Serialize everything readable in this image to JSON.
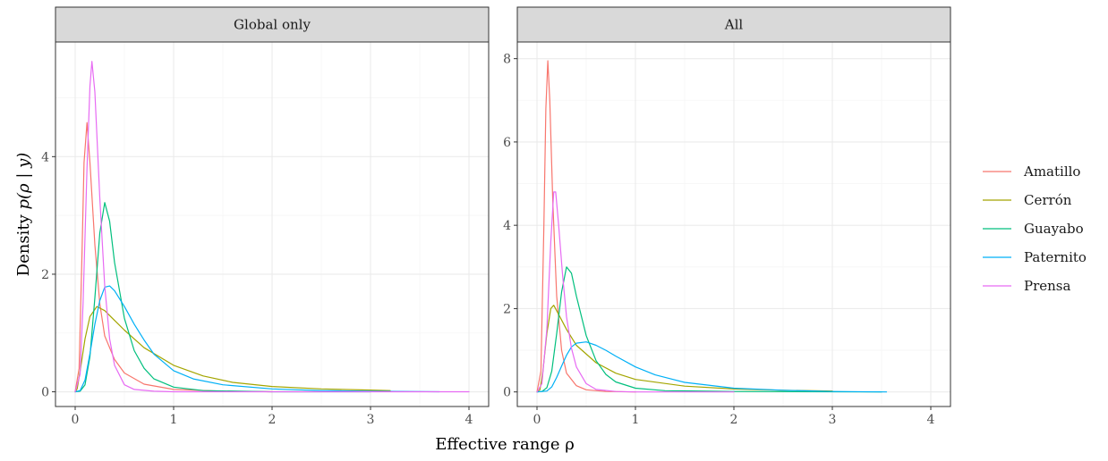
{
  "chart_data": [
    {
      "type": "line",
      "panel": "Global only",
      "xlim": [
        -0.2,
        4.2
      ],
      "ylim": [
        -0.25,
        5.95
      ],
      "x_ticks": [
        0,
        1,
        2,
        3,
        4
      ],
      "y_ticks": [
        0,
        2,
        4
      ],
      "grid": true,
      "series": [
        {
          "name": "Amatillo",
          "points": [
            [
              0,
              0
            ],
            [
              0.04,
              0.4
            ],
            [
              0.07,
              2.4
            ],
            [
              0.09,
              3.9
            ],
            [
              0.12,
              4.58
            ],
            [
              0.15,
              3.9
            ],
            [
              0.2,
              2.5
            ],
            [
              0.25,
              1.5
            ],
            [
              0.3,
              0.95
            ],
            [
              0.4,
              0.55
            ],
            [
              0.5,
              0.32
            ],
            [
              0.7,
              0.13
            ],
            [
              1,
              0.04
            ],
            [
              1.5,
              0.01
            ],
            [
              2,
              0
            ]
          ]
        },
        {
          "name": "Cerrón",
          "points": [
            [
              0,
              0
            ],
            [
              0.02,
              0.05
            ],
            [
              0.05,
              0.35
            ],
            [
              0.1,
              0.9
            ],
            [
              0.15,
              1.28
            ],
            [
              0.22,
              1.45
            ],
            [
              0.3,
              1.38
            ],
            [
              0.5,
              1.05
            ],
            [
              0.7,
              0.75
            ],
            [
              1,
              0.45
            ],
            [
              1.3,
              0.27
            ],
            [
              1.6,
              0.16
            ],
            [
              2,
              0.09
            ],
            [
              2.5,
              0.05
            ],
            [
              3,
              0.03
            ],
            [
              3.2,
              0.02
            ]
          ]
        },
        {
          "name": "Guayabo",
          "points": [
            [
              0,
              0
            ],
            [
              0.05,
              0.01
            ],
            [
              0.1,
              0.12
            ],
            [
              0.15,
              0.6
            ],
            [
              0.2,
              1.6
            ],
            [
              0.25,
              2.7
            ],
            [
              0.3,
              3.22
            ],
            [
              0.35,
              2.9
            ],
            [
              0.4,
              2.2
            ],
            [
              0.5,
              1.25
            ],
            [
              0.6,
              0.7
            ],
            [
              0.7,
              0.4
            ],
            [
              0.8,
              0.22
            ],
            [
              1,
              0.08
            ],
            [
              1.3,
              0.02
            ],
            [
              2,
              0
            ],
            [
              3,
              0
            ]
          ]
        },
        {
          "name": "Paternito",
          "points": [
            [
              0,
              0
            ],
            [
              0.05,
              0.02
            ],
            [
              0.1,
              0.2
            ],
            [
              0.15,
              0.65
            ],
            [
              0.2,
              1.15
            ],
            [
              0.25,
              1.55
            ],
            [
              0.3,
              1.78
            ],
            [
              0.35,
              1.8
            ],
            [
              0.4,
              1.72
            ],
            [
              0.5,
              1.45
            ],
            [
              0.6,
              1.15
            ],
            [
              0.7,
              0.88
            ],
            [
              0.8,
              0.64
            ],
            [
              1,
              0.36
            ],
            [
              1.2,
              0.22
            ],
            [
              1.5,
              0.12
            ],
            [
              2,
              0.05
            ],
            [
              2.5,
              0.02
            ],
            [
              3,
              0.01
            ],
            [
              3.7,
              0
            ]
          ]
        },
        {
          "name": "Prensa",
          "points": [
            [
              0,
              0
            ],
            [
              0.05,
              0.3
            ],
            [
              0.08,
              1.5
            ],
            [
              0.12,
              3.8
            ],
            [
              0.15,
              5.2
            ],
            [
              0.17,
              5.62
            ],
            [
              0.2,
              5.1
            ],
            [
              0.25,
              3.3
            ],
            [
              0.3,
              1.8
            ],
            [
              0.35,
              0.9
            ],
            [
              0.4,
              0.45
            ],
            [
              0.5,
              0.12
            ],
            [
              0.6,
              0.04
            ],
            [
              0.8,
              0.01
            ],
            [
              1,
              0
            ],
            [
              2,
              0
            ],
            [
              4,
              0
            ]
          ]
        }
      ]
    },
    {
      "type": "line",
      "panel": "All",
      "xlim": [
        -0.2,
        4.2
      ],
      "ylim": [
        -0.35,
        8.4
      ],
      "x_ticks": [
        0,
        1,
        2,
        3,
        4
      ],
      "y_ticks": [
        0,
        2,
        4,
        6,
        8
      ],
      "grid": true,
      "series": [
        {
          "name": "Amatillo",
          "points": [
            [
              0,
              0
            ],
            [
              0.04,
              0.5
            ],
            [
              0.07,
              4.0
            ],
            [
              0.09,
              6.8
            ],
            [
              0.11,
              7.95
            ],
            [
              0.13,
              7.0
            ],
            [
              0.16,
              4.6
            ],
            [
              0.2,
              2.3
            ],
            [
              0.25,
              1.0
            ],
            [
              0.3,
              0.45
            ],
            [
              0.4,
              0.15
            ],
            [
              0.5,
              0.05
            ],
            [
              0.7,
              0.01
            ],
            [
              1,
              0
            ]
          ]
        },
        {
          "name": "Cerrón",
          "points": [
            [
              0,
              0
            ],
            [
              0.03,
              0.05
            ],
            [
              0.06,
              0.5
            ],
            [
              0.1,
              1.4
            ],
            [
              0.14,
              2.0
            ],
            [
              0.17,
              2.08
            ],
            [
              0.2,
              1.95
            ],
            [
              0.3,
              1.5
            ],
            [
              0.4,
              1.12
            ],
            [
              0.6,
              0.7
            ],
            [
              0.8,
              0.45
            ],
            [
              1,
              0.3
            ],
            [
              1.5,
              0.14
            ],
            [
              2,
              0.07
            ],
            [
              2.5,
              0.04
            ],
            [
              3,
              0.02
            ]
          ]
        },
        {
          "name": "Guayabo",
          "points": [
            [
              0,
              0
            ],
            [
              0.05,
              0.01
            ],
            [
              0.1,
              0.1
            ],
            [
              0.15,
              0.5
            ],
            [
              0.2,
              1.4
            ],
            [
              0.25,
              2.4
            ],
            [
              0.3,
              3.0
            ],
            [
              0.35,
              2.85
            ],
            [
              0.4,
              2.3
            ],
            [
              0.5,
              1.35
            ],
            [
              0.6,
              0.75
            ],
            [
              0.7,
              0.42
            ],
            [
              0.8,
              0.24
            ],
            [
              1,
              0.09
            ],
            [
              1.3,
              0.03
            ],
            [
              2,
              0.01
            ],
            [
              3.5,
              0
            ]
          ]
        },
        {
          "name": "Paternito",
          "points": [
            [
              0,
              0
            ],
            [
              0.1,
              0.02
            ],
            [
              0.15,
              0.12
            ],
            [
              0.2,
              0.35
            ],
            [
              0.25,
              0.62
            ],
            [
              0.3,
              0.88
            ],
            [
              0.35,
              1.08
            ],
            [
              0.4,
              1.17
            ],
            [
              0.5,
              1.2
            ],
            [
              0.6,
              1.12
            ],
            [
              0.7,
              1.0
            ],
            [
              0.8,
              0.86
            ],
            [
              1,
              0.6
            ],
            [
              1.2,
              0.41
            ],
            [
              1.5,
              0.23
            ],
            [
              2,
              0.09
            ],
            [
              2.5,
              0.04
            ],
            [
              3,
              0.01
            ],
            [
              3.55,
              0
            ]
          ]
        },
        {
          "name": "Prensa",
          "points": [
            [
              0,
              0
            ],
            [
              0.05,
              0.2
            ],
            [
              0.1,
              1.5
            ],
            [
              0.14,
              3.6
            ],
            [
              0.17,
              4.8
            ],
            [
              0.19,
              4.8
            ],
            [
              0.22,
              4.0
            ],
            [
              0.26,
              2.8
            ],
            [
              0.3,
              1.8
            ],
            [
              0.35,
              1.05
            ],
            [
              0.4,
              0.6
            ],
            [
              0.5,
              0.2
            ],
            [
              0.6,
              0.06
            ],
            [
              0.8,
              0.01
            ],
            [
              1,
              0
            ],
            [
              2,
              0
            ]
          ]
        }
      ]
    }
  ],
  "axis": {
    "xlabel": "Effective range ρ",
    "ylabel_prefix": "Density ",
    "ylabel_math": "p(ρ | y)"
  },
  "legend": {
    "position": "right",
    "items": [
      {
        "name": "Amatillo",
        "color": "#F8766D"
      },
      {
        "name": "Cerrón",
        "color": "#A3A500"
      },
      {
        "name": "Guayabo",
        "color": "#00BF7D"
      },
      {
        "name": "Paternito",
        "color": "#00B0F6"
      },
      {
        "name": "Prensa",
        "color": "#E76BF3"
      }
    ]
  },
  "colors": {
    "strip_fill": "#d9d9d9",
    "panel_border": "#333333",
    "grid_major": "#ebebeb",
    "grid_minor": "#f5f5f5"
  }
}
